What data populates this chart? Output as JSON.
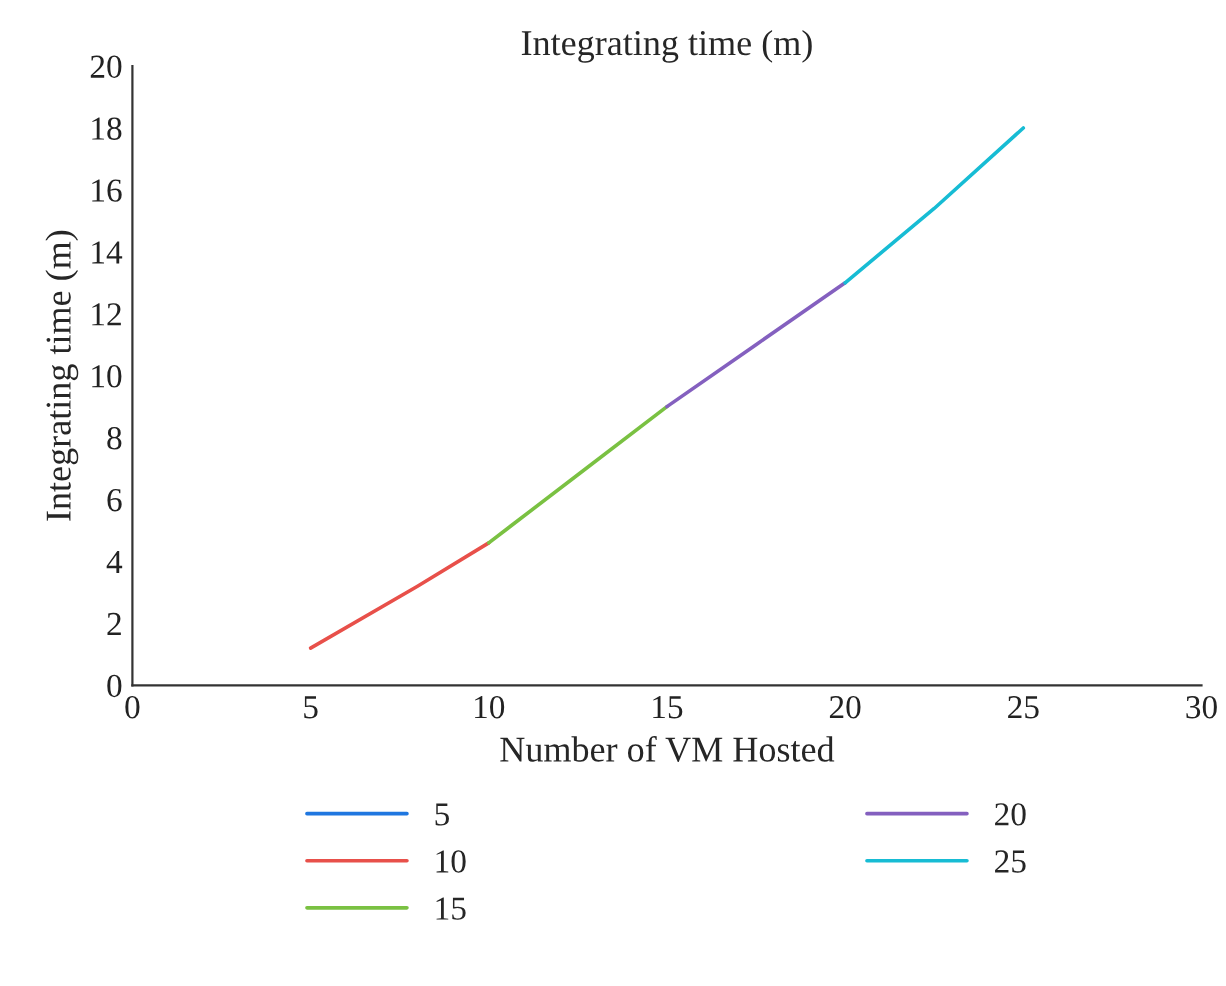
{
  "chart_data": {
    "type": "line",
    "title": "Integrating time (m)",
    "xlabel": "Number of VM Hosted",
    "ylabel": "Integrating time (m)",
    "xlim": [
      0,
      30
    ],
    "xticks": [
      0,
      5,
      10,
      15,
      20,
      25,
      30
    ],
    "ylim": [
      0,
      20
    ],
    "yticks": [
      0,
      2,
      4,
      6,
      8,
      10,
      12,
      14,
      16,
      18,
      20
    ],
    "series": [
      {
        "name": "5",
        "color": "#1f77e0"
      },
      {
        "name": "10",
        "color": "#e8504a",
        "x": [
          5,
          8,
          10
        ],
        "values": [
          1.2,
          3.2,
          4.6
        ]
      },
      {
        "name": "15",
        "color": "#7ac142",
        "x": [
          10,
          12.5,
          15
        ],
        "values": [
          4.6,
          6.8,
          9.0
        ]
      },
      {
        "name": "20",
        "color": "#8460bf",
        "x": [
          15,
          17.5,
          20
        ],
        "values": [
          9.0,
          11.0,
          13.0
        ]
      },
      {
        "name": "25",
        "color": "#17bcd4",
        "x": [
          20,
          22.5,
          25
        ],
        "values": [
          13.0,
          15.4,
          18.0
        ]
      }
    ],
    "grid": false,
    "legend": "bottom",
    "marker": "none",
    "line_style": "solid"
  }
}
